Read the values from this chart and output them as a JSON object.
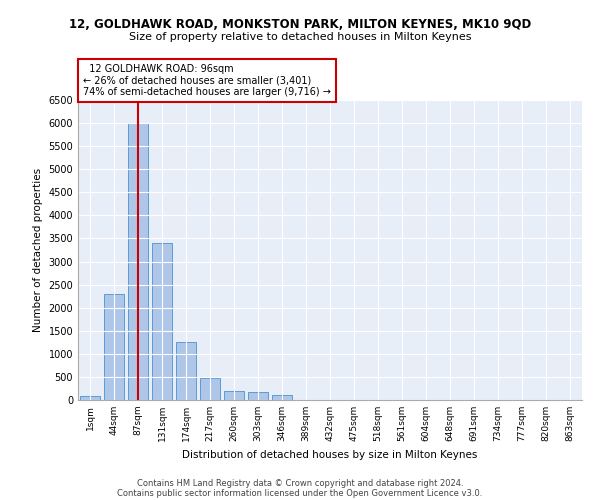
{
  "title_line1": "12, GOLDHAWK ROAD, MONKSTON PARK, MILTON KEYNES, MK10 9QD",
  "title_line2": "Size of property relative to detached houses in Milton Keynes",
  "xlabel": "Distribution of detached houses by size in Milton Keynes",
  "ylabel": "Number of detached properties",
  "footnote1": "Contains HM Land Registry data © Crown copyright and database right 2024.",
  "footnote2": "Contains public sector information licensed under the Open Government Licence v3.0.",
  "bar_labels": [
    "1sqm",
    "44sqm",
    "87sqm",
    "131sqm",
    "174sqm",
    "217sqm",
    "260sqm",
    "303sqm",
    "346sqm",
    "389sqm",
    "432sqm",
    "475sqm",
    "518sqm",
    "561sqm",
    "604sqm",
    "648sqm",
    "691sqm",
    "734sqm",
    "777sqm",
    "820sqm",
    "863sqm"
  ],
  "bar_values": [
    80,
    2300,
    6000,
    3400,
    1250,
    480,
    200,
    170,
    100,
    0,
    0,
    0,
    0,
    0,
    0,
    0,
    0,
    0,
    0,
    0,
    0
  ],
  "bar_color": "#aec6e8",
  "bar_edge_color": "#5b9bd5",
  "property_label": "12 GOLDHAWK ROAD: 96sqm",
  "pct_smaller": 26,
  "n_smaller": "3,401",
  "pct_larger": 74,
  "n_larger": "9,716",
  "vline_x_index": 2,
  "annotation_box_color": "#ffffff",
  "annotation_box_edge_color": "#cc0000",
  "vline_color": "#cc0000",
  "ylim": [
    0,
    6500
  ],
  "yticks": [
    0,
    500,
    1000,
    1500,
    2000,
    2500,
    3000,
    3500,
    4000,
    4500,
    5000,
    5500,
    6000,
    6500
  ],
  "background_color": "#e8eef8",
  "fig_background": "#ffffff",
  "grid_color": "#ffffff"
}
